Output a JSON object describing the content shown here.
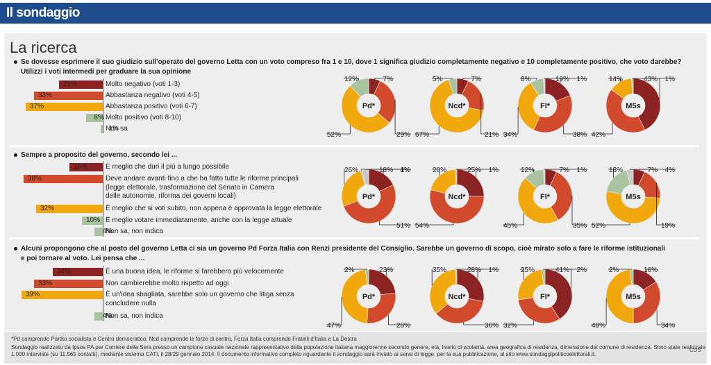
{
  "header": {
    "title": "Il sondaggio"
  },
  "main_title": "La ricerca",
  "colors": {
    "red_dark": "#8b2323",
    "red": "#d24a2c",
    "orange": "#f1a80c",
    "green": "#a8c4a0",
    "header": "#1d4b8c"
  },
  "footer": {
    "note": "*Pd comprende Partito socialista e Centro democratico, Ncd comprende le forze di centro, Forza Italia comprende Fratelli d'Italia e La Destra",
    "methodology_1": "Sondaggio realizzato da Ipsos PA per Corriere della Sera presso un campione casuale nazionale rappresentativo della popolazione italiana maggiorenne secondo genere, età, livello di scolarità, area geografica di residenza, dimensione del comune di residenza. Sono state realizzate",
    "methodology_2": "1.000 interviste (su 11.565 contatti), mediante sistema CATI, il 28/29 gennaio 2014. Il documento informativo completo riguardante il sondaggio sarà inviato ai sensi di legge, per la sua pubblicazione, al sito www.sondaggipoliticoelettorali.it.",
    "credit": "CDS"
  },
  "chart_data": [
    {
      "type": "bar",
      "title": "Se dovesse esprimere il suo giudizio sull'operato del governo Letta con un voto compreso fra 1 e 10, dove 1 significa giudizio completamente negativo e 10 completamente positivo, che voto darebbe?",
      "subtitle": "Utilizzi i voti intermedi per graduare la sua opinione",
      "categories": [
        "Molto negativo (voti 1-3)",
        "Abbastanza negativo (voti 4-5)",
        "Abbastanza positivo (voti 6-7)",
        "Molto positivo (voti 8-10)",
        "Non sa"
      ],
      "values": [
        21,
        33,
        37,
        8,
        1
      ],
      "labels": [
        "21%",
        "33%",
        "37%",
        "8%",
        "1%"
      ],
      "colors": [
        "#8b2323",
        "#d24a2c",
        "#f1a80c",
        "#a8c4a0",
        "#a8c4a0"
      ],
      "donuts": [
        {
          "party": "Pd*",
          "values": [
            7,
            29,
            52,
            12
          ],
          "labels": [
            "7%",
            "29%",
            "52%",
            "12%"
          ]
        },
        {
          "party": "Ncd*",
          "values": [
            7,
            21,
            67,
            5
          ],
          "labels": [
            "7%",
            "21%",
            "67%",
            "5%"
          ]
        },
        {
          "party": "FI*",
          "values": [
            19,
            38,
            34,
            8,
            1
          ],
          "labels": [
            "19%",
            "38%",
            "34%",
            "8%",
            "1%"
          ]
        },
        {
          "party": "M5s",
          "values": [
            43,
            42,
            14,
            1
          ],
          "labels": [
            "43%",
            "42%",
            "14%",
            "1%"
          ]
        }
      ]
    },
    {
      "type": "bar",
      "title": "Sempre a proposito del governo, secondo lei ...",
      "categories": [
        [
          "È meglio che duri il più a lungo possibile"
        ],
        [
          "Deve andare avanti fino a che ha fatto tutte le riforme principali",
          "(legge elettorale, trasformazione del Senato in Camera",
          "delle autonomie, riforma dei governi locali)"
        ],
        [
          "È meglio che si voti subito, non appena è approvata la legge elettorale"
        ],
        [
          "È meglio votare immediatamente, anche con la legge attuale"
        ],
        [
          "Non sa, non indica"
        ]
      ],
      "values": [
        16,
        38,
        32,
        10,
        4
      ],
      "labels": [
        "16%",
        "38%",
        "32%",
        "10%",
        "4%"
      ],
      "colors": [
        "#8b2323",
        "#d24a2c",
        "#f1a80c",
        "#a8c4a0",
        "#a8c4a0"
      ],
      "donuts": [
        {
          "party": "Pd*",
          "values": [
            18,
            51,
            26,
            1,
            4
          ],
          "labels": [
            "18%",
            "51%",
            "26%",
            "1%",
            "4%"
          ]
        },
        {
          "party": "Ncd*",
          "values": [
            25,
            54,
            20,
            1
          ],
          "labels": [
            "25%",
            "54%",
            "20%",
            "1%"
          ]
        },
        {
          "party": "FI*",
          "values": [
            7,
            35,
            45,
            12,
            1
          ],
          "labels": [
            "7%",
            "35%",
            "45%",
            "12%",
            "1%"
          ]
        },
        {
          "party": "M5s",
          "values": [
            7,
            19,
            52,
            18,
            4
          ],
          "labels": [
            "7%",
            "19%",
            "52%",
            "18%",
            "4%"
          ]
        }
      ]
    },
    {
      "type": "bar",
      "title": "Alcuni propongono che al posto del governo Letta ci sia un governo Pd Forza Italia con Renzi presidente del Consiglio. Sarebbe un governo di scopo, cioè mirato solo a fare le riforme istituzionali",
      "title_2": "e poi tornare al voto. Lei pensa che ...",
      "categories": [
        [
          "È una buona idea, le riforme si farebbero più velocemente"
        ],
        [
          "Non cambierebbe molto rispetto ad oggi"
        ],
        [
          "È un'idea sbagliata, sarebbe solo un governo che litiga senza",
          "concludere nulla"
        ],
        [
          "Non sa, non indica"
        ]
      ],
      "values": [
        24,
        33,
        39,
        4
      ],
      "labels": [
        "24%",
        "33%",
        "39%",
        "4%"
      ],
      "colors": [
        "#8b2323",
        "#d24a2c",
        "#f1a80c",
        "#a8c4a0"
      ],
      "donuts": [
        {
          "party": "Pd*",
          "values": [
            23,
            28,
            47,
            2
          ],
          "labels": [
            "23%",
            "28%",
            "47%",
            "2%"
          ]
        },
        {
          "party": "Ncd*",
          "values": [
            28,
            36,
            35,
            1
          ],
          "labels": [
            "28%",
            "36%",
            "35%",
            "1%"
          ]
        },
        {
          "party": "FI*",
          "values": [
            41,
            32,
            25,
            2
          ],
          "labels": [
            "41%",
            "32%",
            "25%",
            "2%"
          ]
        },
        {
          "party": "M5s",
          "values": [
            16,
            34,
            48,
            2
          ],
          "labels": [
            "16%",
            "34%",
            "48%",
            "2%"
          ]
        }
      ]
    }
  ]
}
